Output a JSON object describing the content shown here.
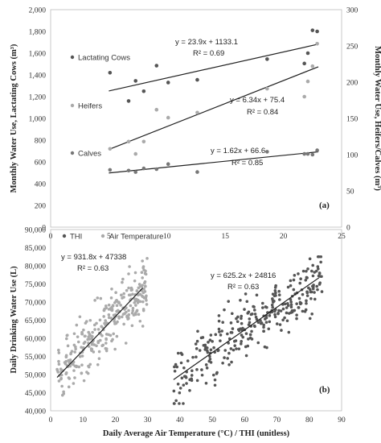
{
  "chart_data": [
    {
      "type": "scatter",
      "panel_label": "(a)",
      "xlim": [
        0,
        25
      ],
      "x_ticks": [
        "0",
        "5",
        "10",
        "15",
        "20",
        "25"
      ],
      "ylabel": "Monthly Water Use, Lactating Cows (m³)",
      "ylim": [
        0,
        2000
      ],
      "y_ticks": [
        "0",
        "200",
        "400",
        "600",
        "800",
        "1,000",
        "1,200",
        "1,400",
        "1,600",
        "1,800",
        "2,000"
      ],
      "y2label": "Monthly Water Use, Heifers/Calves (m³)",
      "y2lim": [
        0,
        300
      ],
      "y2_ticks": [
        "0",
        "50",
        "100",
        "150",
        "200",
        "250",
        "300"
      ],
      "series": [
        {
          "name": "Lactating Cows",
          "axis": "left",
          "color": "#555555",
          "x": [
            5.1,
            6.7,
            7.3,
            8,
            9.1,
            10.1,
            12.6,
            18.6,
            21.8,
            22.1,
            22.5,
            22.9
          ],
          "y": [
            1420,
            1160,
            1345,
            1250,
            1485,
            1330,
            1355,
            1545,
            1505,
            1600,
            1810,
            1800
          ],
          "trendline": {
            "slope": 23.9,
            "intercept": 1133.1,
            "equation": "y = 23.9x + 1133.1",
            "r2": "R² = 0.69"
          }
        },
        {
          "name": "Heifers",
          "axis": "right",
          "color": "#aaaaaa",
          "x": [
            5.1,
            6.7,
            7.3,
            8,
            9.1,
            10.1,
            12.6,
            18.6,
            21.8,
            22.1,
            22.5,
            22.9
          ],
          "y": [
            108,
            118,
            101,
            118,
            162,
            151,
            158,
            191,
            180,
            201,
            222,
            253
          ],
          "trendline": {
            "slope": 6.34,
            "intercept": 75.4,
            "equation": "y = 6.34x + 75.4",
            "r2": "R² = 0.84"
          }
        },
        {
          "name": "Calves",
          "axis": "right",
          "color": "#777777",
          "x": [
            5.1,
            6.7,
            7.3,
            8,
            9.1,
            10.1,
            12.6,
            18.6,
            21.8,
            22.1,
            22.5,
            22.9
          ],
          "y": [
            79,
            78,
            76,
            81,
            80,
            87,
            76,
            104,
            101,
            101,
            100,
            106
          ],
          "trendline": {
            "slope": 1.62,
            "intercept": 66.6,
            "equation": "y = 1.62x + 66.6",
            "r2": "R² = 0.85"
          }
        }
      ]
    },
    {
      "type": "scatter",
      "panel_label": "(b)",
      "xlabel": "Daily Average Air Temperature (°C) / THI (unitless)",
      "xlim": [
        0,
        90
      ],
      "x_ticks": [
        "0",
        "10",
        "20",
        "30",
        "40",
        "50",
        "60",
        "70",
        "80",
        "90"
      ],
      "ylabel": "Daily Drinking Water Use (L)",
      "ylim": [
        40000,
        90000
      ],
      "y_ticks": [
        "40,000",
        "45,000",
        "50,000",
        "55,000",
        "60,000",
        "65,000",
        "70,000",
        "75,000",
        "80,000",
        "85,000",
        "90,000"
      ],
      "series": [
        {
          "name": "THI",
          "color": "#555555",
          "x_range": [
            38,
            84
          ],
          "trendline": {
            "slope": 625.2,
            "intercept": 24816,
            "x_from": 38,
            "x_to": 83,
            "equation": "y = 625.2x + 24816",
            "r2": "R² = 0.63"
          }
        },
        {
          "name": "Air Temperature",
          "color": "#aaaaaa",
          "x_range": [
            2,
            30
          ],
          "trendline": {
            "slope": 931.8,
            "intercept": 47338,
            "x_from": 2,
            "x_to": 28.5,
            "equation": "y = 931.8x + 47338",
            "r2": "R² = 0.63"
          }
        }
      ]
    }
  ]
}
